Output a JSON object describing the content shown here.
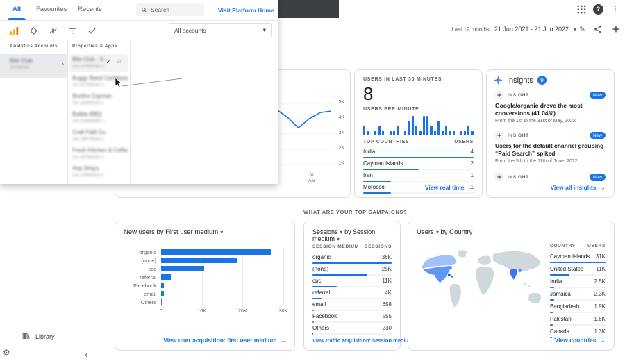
{
  "colors": {
    "accent": "#1a73e8",
    "header_dark": "#3c4043",
    "text_primary": "#202124",
    "text_secondary": "#5f6368",
    "border": "#dadce0"
  },
  "icons": {
    "caret_down": "▾",
    "arrow_right": "→",
    "chevron_right": "›",
    "chevron_left": "‹",
    "check": "✓",
    "star": "☆",
    "dots_vertical": "⋮",
    "gear": "⚙",
    "pencil": "✎",
    "help": "?"
  },
  "toolbar": {
    "date_preset": "Last 12 months",
    "date_range": "21 Jun 2021 - 21 Jun 2022"
  },
  "account_picker": {
    "tabs": [
      {
        "label": "All"
      },
      {
        "label": "Favourites"
      },
      {
        "label": "Recents"
      }
    ],
    "search_placeholder": "Search",
    "platform_home_link": "Visit Platform Home",
    "accounts_dropdown_value": "All accounts",
    "column_headers": {
      "accounts": "Analytics Accounts",
      "properties": "Properties & Apps"
    },
    "account": {
      "name": "Bite Club",
      "id": "10789342"
    },
    "properties": [
      {
        "name": "Bite Club - S...",
        "id": "UA-10789342-1"
      },
      {
        "name": "Buggy Band Caribbean...",
        "id": "UA-10789342-2"
      },
      {
        "name": "Bonfire Cayman",
        "id": "UA-24356520-1"
      },
      {
        "name": "Bubba BBQ",
        "id": "UA-22446688-1"
      },
      {
        "name": "Craft F&B Co.",
        "id": "UA-19876543-1"
      },
      {
        "name": "Fresh Kitchen & Coffee",
        "id": "UA-18765432-1"
      },
      {
        "name": "Hop Sing's",
        "id": "UA-17654321-1"
      }
    ]
  },
  "trend_card": {
    "x_tick_day": "01",
    "x_tick_month": "Apr"
  },
  "realtime_card": {
    "title": "USERS IN LAST 30 MINUTES",
    "value": "8",
    "per_minute_label": "USERS PER MINUTE",
    "countries_label": "TOP COUNTRIES",
    "users_label": "USERS",
    "link": "View real time"
  },
  "insights_card": {
    "title": "Insights",
    "badge": "9",
    "item_label": "INSIGHT",
    "new_badge": "New",
    "items": [
      {
        "title": "Google/organic drove the most conversions (41.04%)",
        "period": "From the 1st to the 31st of May, 2022"
      },
      {
        "title": "Users for the default channel grouping “Paid Search” spiked",
        "period": "From the 5th to the 11th of June, 2022"
      }
    ],
    "link": "View all insights"
  },
  "campaigns_question": "WHAT ARE YOUR TOP CAMPAIGNS?",
  "new_users_card": {
    "title": "New users by First user medium",
    "link": "View user acquisition: first user medium"
  },
  "sessions_card": {
    "metric": "Sessions",
    "by": "by",
    "dimension": "Session medium",
    "col_dim": "SESSION MEDIUM",
    "col_val": "SESSIONS",
    "link": "View traffic acquisition: session medium"
  },
  "countries_card": {
    "metric": "Users",
    "by": "by Country",
    "col_dim": "COUNTRY",
    "col_val": "USERS",
    "link": "View countries"
  },
  "sidebar": {
    "library": "Library"
  },
  "chart_data": [
    {
      "name": "users-over-time",
      "type": "line",
      "ylim": [
        0,
        5000
      ],
      "y_ticks": [
        "5K",
        "4K",
        "3K",
        "2K",
        "1K"
      ],
      "x_ticks_visible": [
        "01 Apr"
      ],
      "values_k": [
        4.5,
        4.6,
        4.4,
        4.6,
        4.7,
        4.5,
        4.3,
        4.6,
        4.4,
        4.2,
        4.5,
        4.6,
        4.3,
        4.5,
        4.6,
        4.1,
        3.4,
        4.0,
        4.4,
        4.5
      ]
    },
    {
      "name": "users-per-minute",
      "type": "bar",
      "values": [
        2,
        1,
        0,
        1,
        2,
        1,
        0,
        1,
        1,
        2,
        0,
        1,
        3,
        4,
        2,
        1,
        4,
        4,
        2,
        1,
        3,
        1,
        2,
        1,
        1,
        0,
        1,
        1,
        2,
        1
      ]
    },
    {
      "name": "realtime-top-countries",
      "type": "table",
      "categories": [
        "India",
        "Cayman Islands",
        "Iran",
        "Morocco"
      ],
      "values": [
        4,
        2,
        1,
        1
      ],
      "values_display": [
        "4",
        "2",
        "1",
        "1"
      ]
    },
    {
      "name": "new-users-by-first-user-medium",
      "type": "bar",
      "categories": [
        "organic",
        "(none)",
        "cpc",
        "referral",
        "Facebook",
        "email",
        "Others"
      ],
      "values": [
        27000,
        18500,
        10500,
        2400,
        700,
        600,
        300
      ],
      "x_ticks": [
        "0",
        "10K",
        "20K",
        "30K"
      ],
      "xlim": [
        0,
        30000
      ]
    },
    {
      "name": "sessions-by-session-medium",
      "type": "table",
      "categories": [
        "organic",
        "(none)",
        "cpc",
        "referral",
        "email",
        "Facebook",
        "Others"
      ],
      "values": [
        36000,
        25000,
        11000,
        4000,
        658,
        555,
        230
      ],
      "values_display": [
        "36K",
        "25K",
        "11K",
        "4K",
        "658",
        "555",
        "230"
      ]
    },
    {
      "name": "users-by-country",
      "type": "table",
      "categories": [
        "Cayman Islands",
        "United States",
        "India",
        "Jamaica",
        "Bangladesh",
        "Pakistan",
        "Canada"
      ],
      "values": [
        31000,
        11000,
        2500,
        2300,
        1900,
        1600,
        1300
      ],
      "values_display": [
        "31K",
        "11K",
        "2.5K",
        "2.3K",
        "1.9K",
        "1.6K",
        "1.3K"
      ]
    }
  ]
}
